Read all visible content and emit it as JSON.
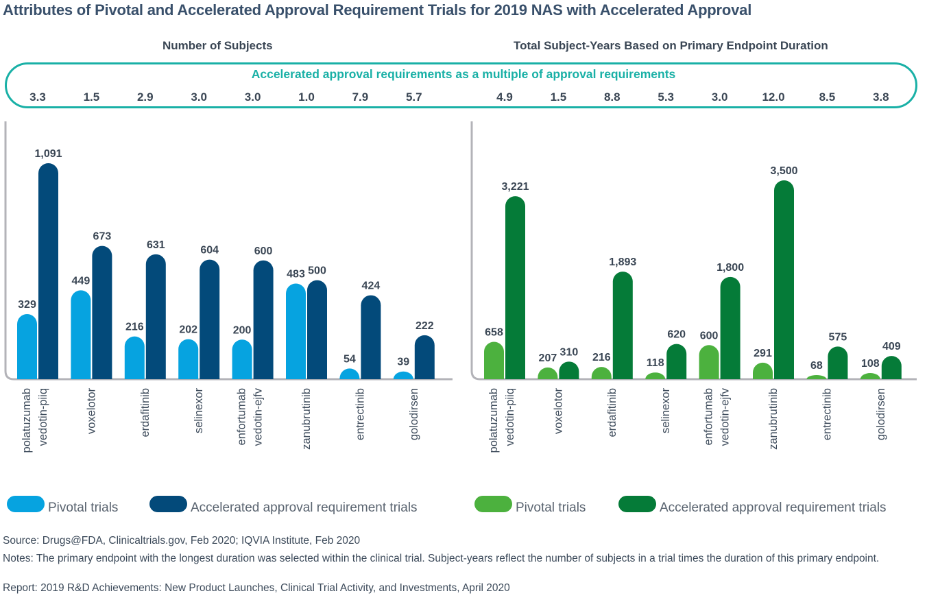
{
  "title": "Attributes of Pivotal and Accelerated Approval Requirement Trials for 2019 NAS with Accelerated Approval",
  "multiple_heading": "Accelerated approval requirements as a multiple of approval requirements",
  "colors": {
    "left_pivotal": "#06a3e0",
    "left_accelerated": "#034a7a",
    "right_pivotal": "#4cb13e",
    "right_accelerated": "#057b38",
    "accent": "#19b0a6",
    "axis": "#b3b3b8"
  },
  "chart_data": [
    {
      "type": "bar",
      "title": "Number of Subjects",
      "categories": [
        "polatuzumab vedotin-piiq",
        "voxelotor",
        "erdafitinib",
        "selinexor",
        "enfortumab vedotin-ejfv",
        "zanubrutinib",
        "entrectinib",
        "golodirsen"
      ],
      "series": [
        {
          "name": "Pivotal trials",
          "values": [
            329,
            449,
            216,
            202,
            200,
            483,
            54,
            39
          ],
          "labels": [
            "329",
            "449",
            "216",
            "202",
            "200",
            "483",
            "54",
            "39"
          ]
        },
        {
          "name": "Accelerated approval requirement trials",
          "values": [
            1091,
            673,
            631,
            604,
            600,
            500,
            424,
            222
          ],
          "labels": [
            "1,091",
            "673",
            "631",
            "604",
            "600",
            "500",
            "424",
            "222"
          ]
        }
      ],
      "multiples": [
        "3.3",
        "1.5",
        "2.9",
        "3.0",
        "3.0",
        "1.0",
        "7.9",
        "5.7"
      ],
      "ylim": [
        0,
        1091
      ],
      "legend_position": "bottom"
    },
    {
      "type": "bar",
      "title": "Total Subject-Years Based on Primary Endpoint Duration",
      "categories": [
        "polatuzumab vedotin-piiq",
        "voxelotor",
        "erdafitinib",
        "selinexor",
        "enfortumab vedotin-ejfv",
        "zanubrutinib",
        "entrectinib",
        "golodirsen"
      ],
      "series": [
        {
          "name": "Pivotal trials",
          "values": [
            658,
            207,
            216,
            118,
            600,
            291,
            68,
            108
          ],
          "labels": [
            "658",
            "207",
            "216",
            "118",
            "600",
            "291",
            "68",
            "108"
          ]
        },
        {
          "name": "Accelerated approval requirement trials",
          "values": [
            3221,
            310,
            1893,
            620,
            1800,
            3500,
            575,
            409
          ],
          "labels": [
            "3,221",
            "310",
            "1,893",
            "620",
            "1,800",
            "3,500",
            "575",
            "409"
          ]
        }
      ],
      "multiples": [
        "4.9",
        "1.5",
        "8.8",
        "5.3",
        "3.0",
        "12.0",
        "8.5",
        "3.8"
      ],
      "ylim": [
        0,
        3500
      ],
      "legend_position": "bottom"
    }
  ],
  "footer": {
    "source": "Source: Drugs@FDA, Clinicaltrials.gov, Feb 2020; IQVIA Institute, Feb 2020",
    "notes": "Notes: The primary endpoint with the longest duration was selected within the clinical trial. Subject-years reflect the number of subjects in a trial times the duration of this primary endpoint.",
    "report": "Report: 2019 R&D Achievements: New Product Launches, Clinical Trial Activity, and Investments, April 2020"
  }
}
